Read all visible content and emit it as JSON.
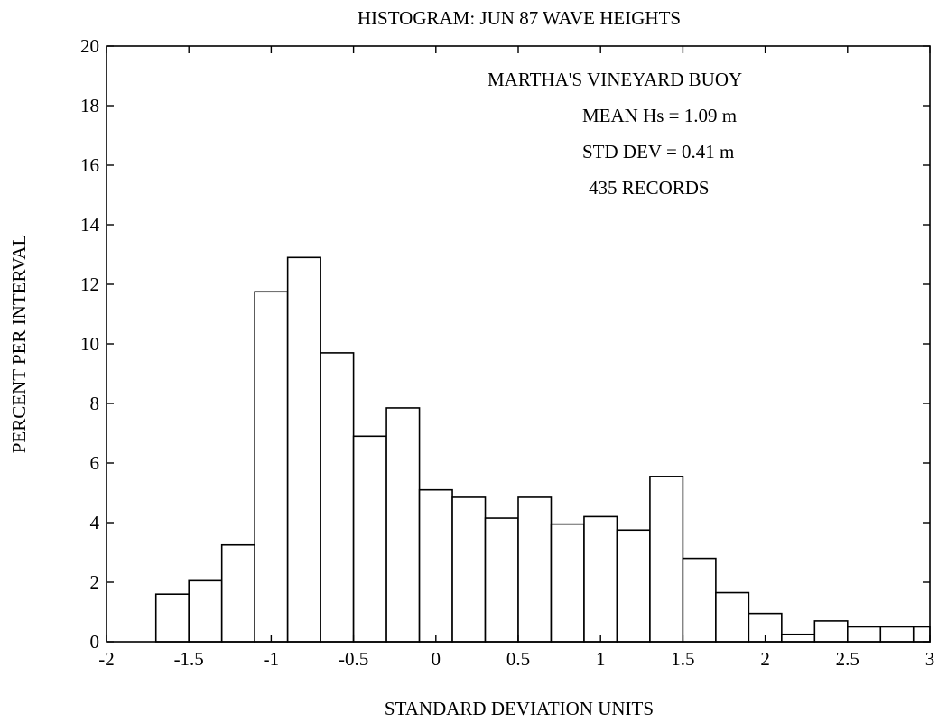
{
  "chart_data": {
    "type": "bar",
    "title": "HISTOGRAM: JUN 87 WAVE HEIGHTS",
    "xlabel": "STANDARD DEVIATION UNITS",
    "ylabel": "PERCENT PER INTERVAL",
    "xlim": [
      -2,
      3
    ],
    "ylim": [
      0,
      20
    ],
    "xticks": [
      "-2",
      "-1.5",
      "-1",
      "-0.5",
      "0",
      "0.5",
      "1",
      "1.5",
      "2",
      "2.5",
      "3"
    ],
    "yticks": [
      "0",
      "2",
      "4",
      "6",
      "8",
      "10",
      "12",
      "14",
      "16",
      "18",
      "20"
    ],
    "bin_edges": [
      -1.7,
      -1.5,
      -1.3,
      -1.1,
      -0.9,
      -0.7,
      -0.5,
      -0.3,
      -0.1,
      0.1,
      0.3,
      0.5,
      0.7,
      0.9,
      1.1,
      1.3,
      1.5,
      1.7,
      1.9,
      2.1,
      2.3,
      2.5,
      2.7,
      2.9,
      3.0
    ],
    "values": [
      1.6,
      2.05,
      3.25,
      11.75,
      12.9,
      9.7,
      6.9,
      7.85,
      5.1,
      4.85,
      4.15,
      4.85,
      3.95,
      4.2,
      3.75,
      5.55,
      2.8,
      1.65,
      0.95,
      0.25,
      0.7,
      0.5,
      0.5,
      0.5
    ],
    "grid": false,
    "annotations": [
      "MARTHA'S VINEYARD BUOY",
      "MEAN Hs = 1.09 m",
      "STD DEV = 0.41 m",
      "435 RECORDS"
    ]
  }
}
